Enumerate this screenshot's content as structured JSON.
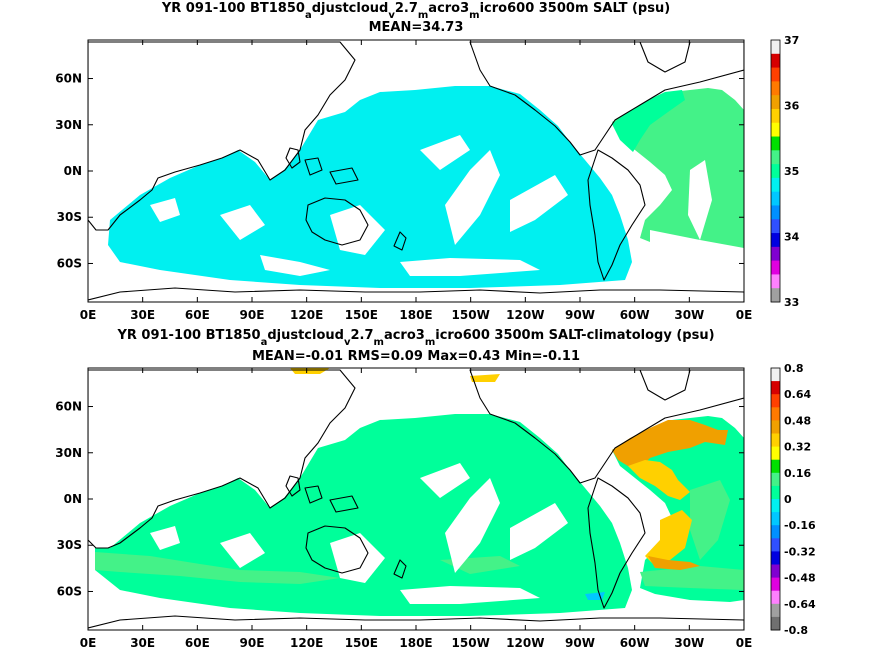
{
  "panels": [
    {
      "title_parts": [
        "YR 091-100 BT1850",
        "a",
        "djustcloud",
        "v",
        "2.7",
        "m",
        "acro3",
        "m",
        "icro600 3500m SALT (psu)"
      ],
      "stats": "MEAN=34.73",
      "colorbar": {
        "labels": [
          "37",
          "36",
          "35",
          "34",
          "33"
        ],
        "colors": [
          "#f0f0f0",
          "#d60000",
          "#ff4000",
          "#ff7a00",
          "#f0a000",
          "#ffd000",
          "#ffff00",
          "#00e000",
          "#44f288",
          "#00ff9a",
          "#00f0f0",
          "#00c8ff",
          "#0090ff",
          "#3050ff",
          "#0000e0",
          "#8000d0",
          "#e000e0",
          "#ff80ff",
          "#a0a0a0"
        ]
      },
      "fill_color": "#00f0f0",
      "atlantic_color": "#44f288",
      "bright_color": "#00ff9a"
    },
    {
      "title_parts": [
        "YR 091-100 BT1850",
        "a",
        "djustcloud",
        "v",
        "2.7",
        "m",
        "acro3",
        "m",
        "icro600 3500m SALT-climatology (psu)"
      ],
      "stats": "MEAN=-0.01   RMS=0.09   Max=0.43   Min=-0.11",
      "colorbar": {
        "labels": [
          "0.8",
          "0.64",
          "0.48",
          "0.32",
          "0.16",
          "0",
          "-0.16",
          "-0.32",
          "-0.48",
          "-0.64",
          "-0.8"
        ],
        "colors": [
          "#f0f0f0",
          "#d60000",
          "#ff4000",
          "#ff7a00",
          "#f0a000",
          "#ffd000",
          "#ffff00",
          "#00e000",
          "#44f288",
          "#00ff9a",
          "#00f0f0",
          "#00c8ff",
          "#0090ff",
          "#3050ff",
          "#0000e0",
          "#8000d0",
          "#e000e0",
          "#ff80ff",
          "#a0a0a0",
          "#707070"
        ]
      },
      "fill_color": "#00ff9a",
      "atlantic_color": "#44f288",
      "bright_color": "#ffd000"
    }
  ],
  "axes": {
    "x_ticks": [
      "0E",
      "30E",
      "60E",
      "90E",
      "120E",
      "150E",
      "180E",
      "150W",
      "120W",
      "90W",
      "60W",
      "30W",
      "0E"
    ],
    "y_ticks": [
      "60N",
      "30N",
      "0N",
      "30S",
      "60S"
    ]
  }
}
